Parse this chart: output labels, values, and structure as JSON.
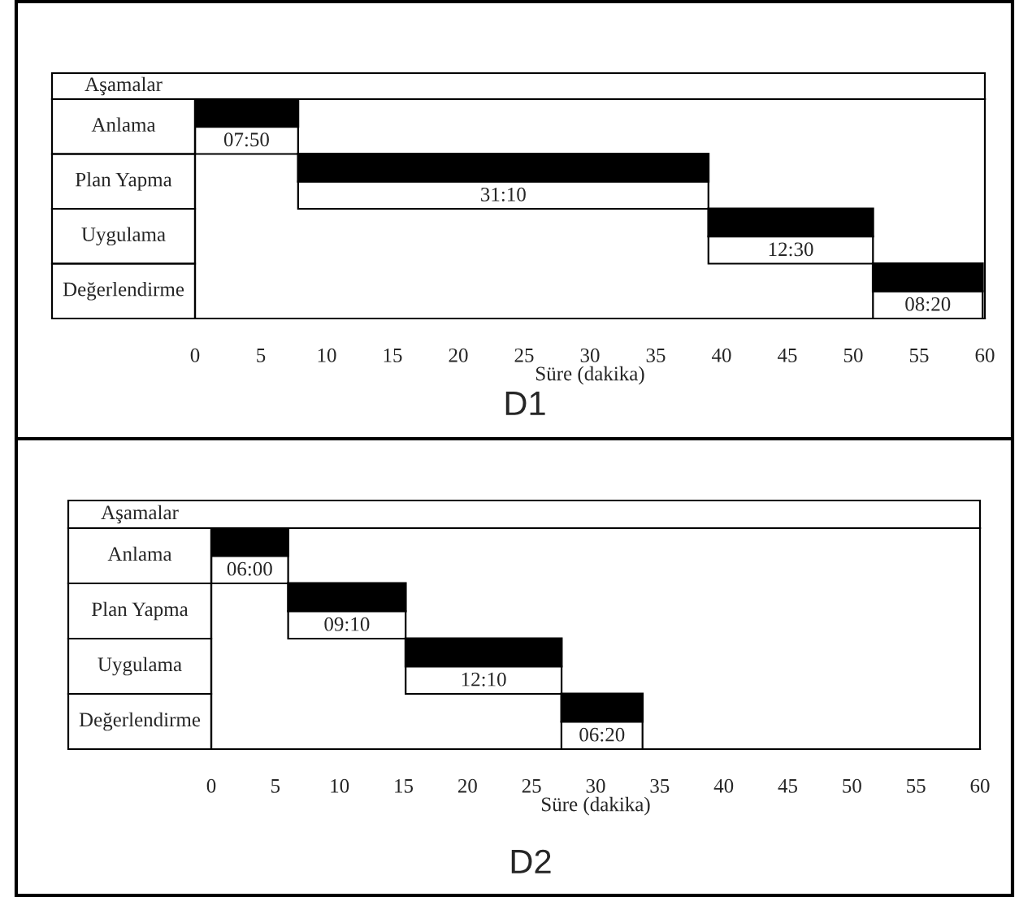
{
  "chart_data": [
    {
      "type": "bar",
      "orientation": "horizontal",
      "title": "D1",
      "ylabel": "Aşamalar",
      "xlabel": "Süre (dakika)",
      "categories": [
        "Anlama",
        "Plan Yapma",
        "Uygulama",
        "Değerlendirme"
      ],
      "color": "#000000",
      "values": [
        7.83,
        31.17,
        12.5,
        8.33
      ],
      "base": [
        0,
        7.83,
        39,
        51.5
      ],
      "value_labels": [
        "07:50",
        "31:10",
        "12:30",
        "08:20"
      ],
      "xlim": [
        0,
        60
      ],
      "xticks": [
        0,
        5,
        10,
        15,
        20,
        25,
        30,
        35,
        40,
        45,
        50,
        55,
        60
      ],
      "grid": false
    },
    {
      "type": "bar",
      "orientation": "horizontal",
      "title": "D2",
      "ylabel": "Aşamalar",
      "xlabel": "Süre (dakika)",
      "categories": [
        "Anlama",
        "Plan Yapma",
        "Uygulama",
        "Değerlendirme"
      ],
      "color": "#000000",
      "values": [
        6,
        9.17,
        12.17,
        6.33
      ],
      "base": [
        0,
        6,
        15.17,
        27.33
      ],
      "value_labels": [
        "06:00",
        "09:10",
        "12:10",
        "06:20"
      ],
      "xlim": [
        0,
        60
      ],
      "xticks": [
        0,
        5,
        10,
        15,
        20,
        25,
        30,
        35,
        40,
        45,
        50,
        55,
        60
      ],
      "grid": false
    }
  ]
}
